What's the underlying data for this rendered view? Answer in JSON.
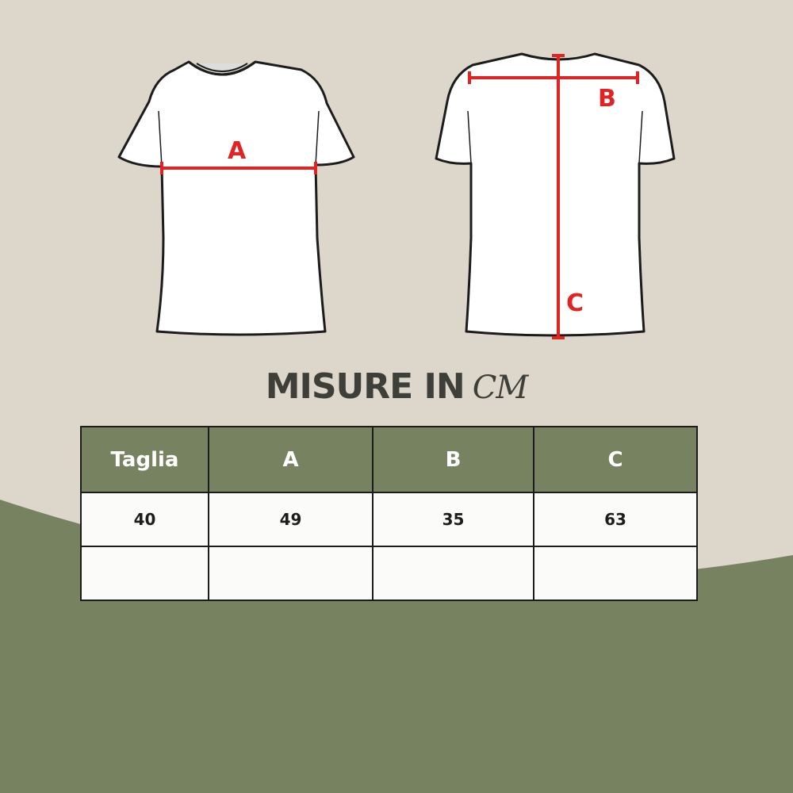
{
  "colors": {
    "background": "#dcd6cb",
    "accent_green": "#778260",
    "measure_red": "#e02424",
    "outline": "#1c1c1c"
  },
  "diagram": {
    "front_label": "A",
    "back_labels": [
      "B",
      "C"
    ]
  },
  "title": {
    "text": "MISURE IN",
    "unit": "CM"
  },
  "table": {
    "headers": [
      "Taglia",
      "A",
      "B",
      "C"
    ],
    "rows": [
      [
        "40",
        "49",
        "35",
        "63"
      ],
      [
        "",
        "",
        "",
        ""
      ]
    ]
  }
}
